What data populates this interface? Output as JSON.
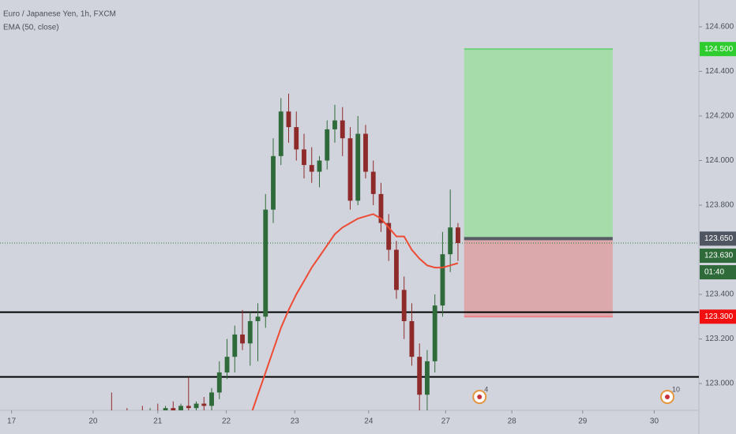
{
  "chart_data": {
    "type": "candlestick",
    "title": "Euro / Japanese Yen, 1h, FXCM",
    "indicator": "EMA (50, close)",
    "up_color": "#2f6b3a",
    "down_color": "#8e2a2a",
    "ema_color": "#ee4b35",
    "ohlc": [
      [
        122.8,
        122.84,
        122.76,
        122.82
      ],
      [
        122.82,
        122.85,
        122.78,
        122.8
      ],
      [
        122.8,
        122.83,
        122.77,
        122.81
      ],
      [
        122.81,
        122.86,
        122.79,
        122.83
      ],
      [
        122.83,
        122.85,
        122.78,
        122.8
      ],
      [
        122.8,
        122.84,
        122.76,
        122.79
      ],
      [
        122.79,
        122.83,
        122.75,
        122.82
      ],
      [
        122.82,
        122.86,
        122.8,
        122.84
      ],
      [
        122.84,
        122.87,
        122.79,
        122.81
      ],
      [
        122.81,
        122.85,
        122.78,
        122.83
      ],
      [
        122.83,
        122.86,
        122.8,
        122.82
      ],
      [
        122.82,
        122.85,
        122.79,
        122.84
      ],
      [
        122.84,
        122.87,
        122.81,
        122.83
      ],
      [
        122.83,
        122.86,
        122.8,
        122.85
      ],
      [
        122.85,
        122.96,
        122.82,
        122.84
      ],
      [
        122.84,
        122.87,
        122.8,
        122.86
      ],
      [
        122.86,
        122.89,
        122.83,
        122.85
      ],
      [
        122.85,
        122.88,
        122.82,
        122.87
      ],
      [
        122.87,
        122.9,
        122.84,
        122.86
      ],
      [
        122.86,
        122.89,
        122.83,
        122.88
      ],
      [
        122.88,
        122.91,
        122.85,
        122.87
      ],
      [
        122.87,
        122.9,
        122.84,
        122.89
      ],
      [
        122.89,
        122.92,
        122.86,
        122.88
      ],
      [
        122.88,
        122.91,
        122.85,
        122.9
      ],
      [
        122.9,
        123.03,
        122.87,
        122.89
      ],
      [
        122.89,
        122.92,
        122.86,
        122.91
      ],
      [
        122.91,
        122.94,
        122.88,
        122.9
      ],
      [
        122.9,
        122.98,
        122.88,
        122.96
      ],
      [
        122.96,
        123.1,
        122.93,
        123.05
      ],
      [
        123.05,
        123.2,
        123.02,
        123.12
      ],
      [
        123.12,
        123.26,
        123.05,
        123.22
      ],
      [
        123.22,
        123.33,
        123.15,
        123.18
      ],
      [
        123.18,
        123.32,
        123.08,
        123.28
      ],
      [
        123.28,
        123.36,
        123.1,
        123.3
      ],
      [
        123.3,
        123.85,
        123.25,
        123.78
      ],
      [
        123.78,
        124.1,
        123.72,
        124.02
      ],
      [
        124.02,
        124.28,
        123.98,
        124.22
      ],
      [
        124.22,
        124.3,
        124.08,
        124.15
      ],
      [
        124.15,
        124.22,
        124.0,
        124.05
      ],
      [
        124.05,
        124.12,
        123.92,
        123.98
      ],
      [
        123.98,
        124.06,
        123.9,
        123.95
      ],
      [
        123.95,
        124.02,
        123.88,
        124.0
      ],
      [
        124.0,
        124.18,
        123.96,
        124.14
      ],
      [
        124.14,
        124.25,
        124.08,
        124.18
      ],
      [
        124.18,
        124.24,
        124.02,
        124.1
      ],
      [
        124.1,
        124.15,
        123.78,
        123.82
      ],
      [
        123.82,
        124.2,
        123.8,
        124.12
      ],
      [
        124.12,
        124.16,
        123.92,
        123.95
      ],
      [
        123.95,
        124.0,
        123.8,
        123.85
      ],
      [
        123.85,
        123.9,
        123.68,
        123.72
      ],
      [
        123.72,
        123.76,
        123.55,
        123.6
      ],
      [
        123.6,
        123.64,
        123.38,
        123.42
      ],
      [
        123.42,
        123.48,
        123.2,
        123.28
      ],
      [
        123.28,
        123.36,
        123.08,
        123.12
      ],
      [
        123.12,
        123.18,
        122.88,
        122.95
      ],
      [
        122.95,
        123.15,
        122.85,
        123.1
      ],
      [
        123.1,
        123.4,
        123.05,
        123.35
      ],
      [
        123.35,
        123.68,
        123.3,
        123.58
      ],
      [
        123.58,
        123.87,
        123.5,
        123.7
      ],
      [
        123.7,
        123.72,
        123.55,
        123.63
      ]
    ],
    "ema": [
      null,
      null,
      null,
      null,
      null,
      null,
      null,
      null,
      null,
      null,
      null,
      null,
      null,
      null,
      null,
      null,
      null,
      null,
      null,
      null,
      null,
      null,
      null,
      null,
      null,
      null,
      null,
      null,
      null,
      null,
      null,
      null,
      122.85,
      122.95,
      123.05,
      123.15,
      123.25,
      123.33,
      123.4,
      123.46,
      123.52,
      123.57,
      123.62,
      123.67,
      123.7,
      123.72,
      123.74,
      123.75,
      123.76,
      123.74,
      123.7,
      123.66,
      123.66,
      123.6,
      123.56,
      123.53,
      123.52,
      123.52,
      123.53,
      123.54
    ],
    "xlim": [
      -0.5,
      90.3
    ],
    "xticks": [
      {
        "value": 1,
        "label": "17"
      },
      {
        "value": 11.6,
        "label": "20"
      },
      {
        "value": 20,
        "label": "21"
      },
      {
        "value": 28.9,
        "label": "22"
      },
      {
        "value": 37.8,
        "label": "23"
      },
      {
        "value": 47.4,
        "label": "24"
      },
      {
        "value": 57.4,
        "label": "27"
      },
      {
        "value": 66,
        "label": "28"
      },
      {
        "value": 75.2,
        "label": "29"
      },
      {
        "value": 84.5,
        "label": "30"
      }
    ],
    "ylim": [
      122.88,
      124.72
    ],
    "yticks": [
      {
        "value": 124.6,
        "label": "124.600"
      },
      {
        "value": 124.4,
        "label": "124.400"
      },
      {
        "value": 124.2,
        "label": "124.200"
      },
      {
        "value": 124.0,
        "label": "124.000"
      },
      {
        "value": 123.8,
        "label": "123.800"
      },
      {
        "value": 123.4,
        "label": "123.400"
      },
      {
        "value": 123.2,
        "label": "123.200"
      },
      {
        "value": 123.0,
        "label": "123.000"
      }
    ],
    "position": {
      "entry": 123.65,
      "target": 124.5,
      "stop": 123.3,
      "start": 59.8,
      "end": 79.1,
      "entry_label": "123.650",
      "target_label": "124.500",
      "stop_label": "123.300"
    },
    "horizontal_lines": [
      123.32,
      123.03
    ],
    "last_price": 123.63,
    "last_price_label": "123.630",
    "countdown": "01:40",
    "events": [
      {
        "x": 61.8,
        "label": "4"
      },
      {
        "x": 86.2,
        "label": "10"
      }
    ]
  }
}
